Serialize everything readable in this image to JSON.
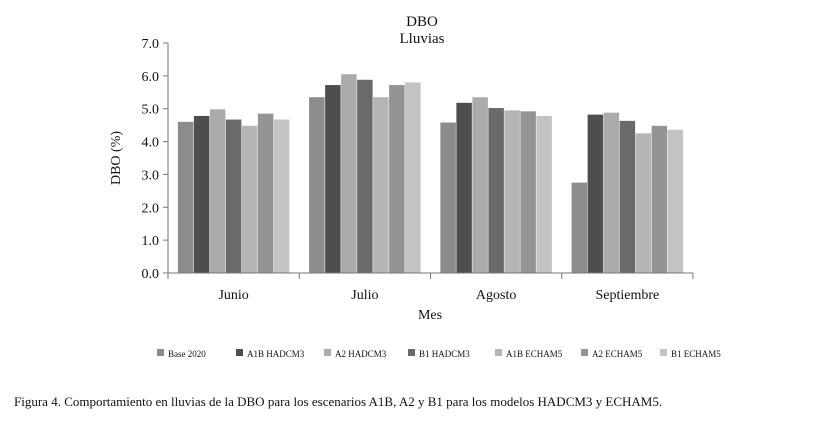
{
  "chart_data": {
    "type": "bar",
    "title": "DBO",
    "subtitle": "Lluvias",
    "xlabel": "Mes",
    "ylabel": "DBO (%)",
    "ylim": [
      0,
      7
    ],
    "yticks": [
      "0.0",
      "1.0",
      "2.0",
      "3.0",
      "4.0",
      "5.0",
      "6.0",
      "7.0"
    ],
    "categories": [
      "Junio",
      "Julio",
      "Agosto",
      "Septiembre"
    ],
    "grid": false,
    "legend_position": "bottom",
    "series": [
      {
        "name": "Base 2020",
        "color": "#8c8c8c",
        "values": [
          4.6,
          5.35,
          4.58,
          2.75
        ]
      },
      {
        "name": "A1B HADCM3",
        "color": "#4e4e4e",
        "values": [
          4.78,
          5.72,
          5.18,
          4.82
        ]
      },
      {
        "name": "A2 HADCM3",
        "color": "#ababab",
        "values": [
          4.98,
          6.05,
          5.35,
          4.88
        ]
      },
      {
        "name": "B1 HADCM3",
        "color": "#6a6a6a",
        "values": [
          4.67,
          5.88,
          5.02,
          4.63
        ]
      },
      {
        "name": "A1B ECHAM5",
        "color": "#b5b5b5",
        "values": [
          4.48,
          5.35,
          4.95,
          4.25
        ]
      },
      {
        "name": "A2 ECHAM5",
        "color": "#949494",
        "values": [
          4.85,
          5.72,
          4.92,
          4.48
        ]
      },
      {
        "name": "B1 ECHAM5",
        "color": "#c3c3c3",
        "values": [
          4.67,
          5.8,
          4.78,
          4.36
        ]
      }
    ]
  },
  "caption": "Figura 4. Comportamiento en lluvias de la DBO para los escenarios A1B, A2 y B1 para los modelos HADCM3 y ECHAM5."
}
